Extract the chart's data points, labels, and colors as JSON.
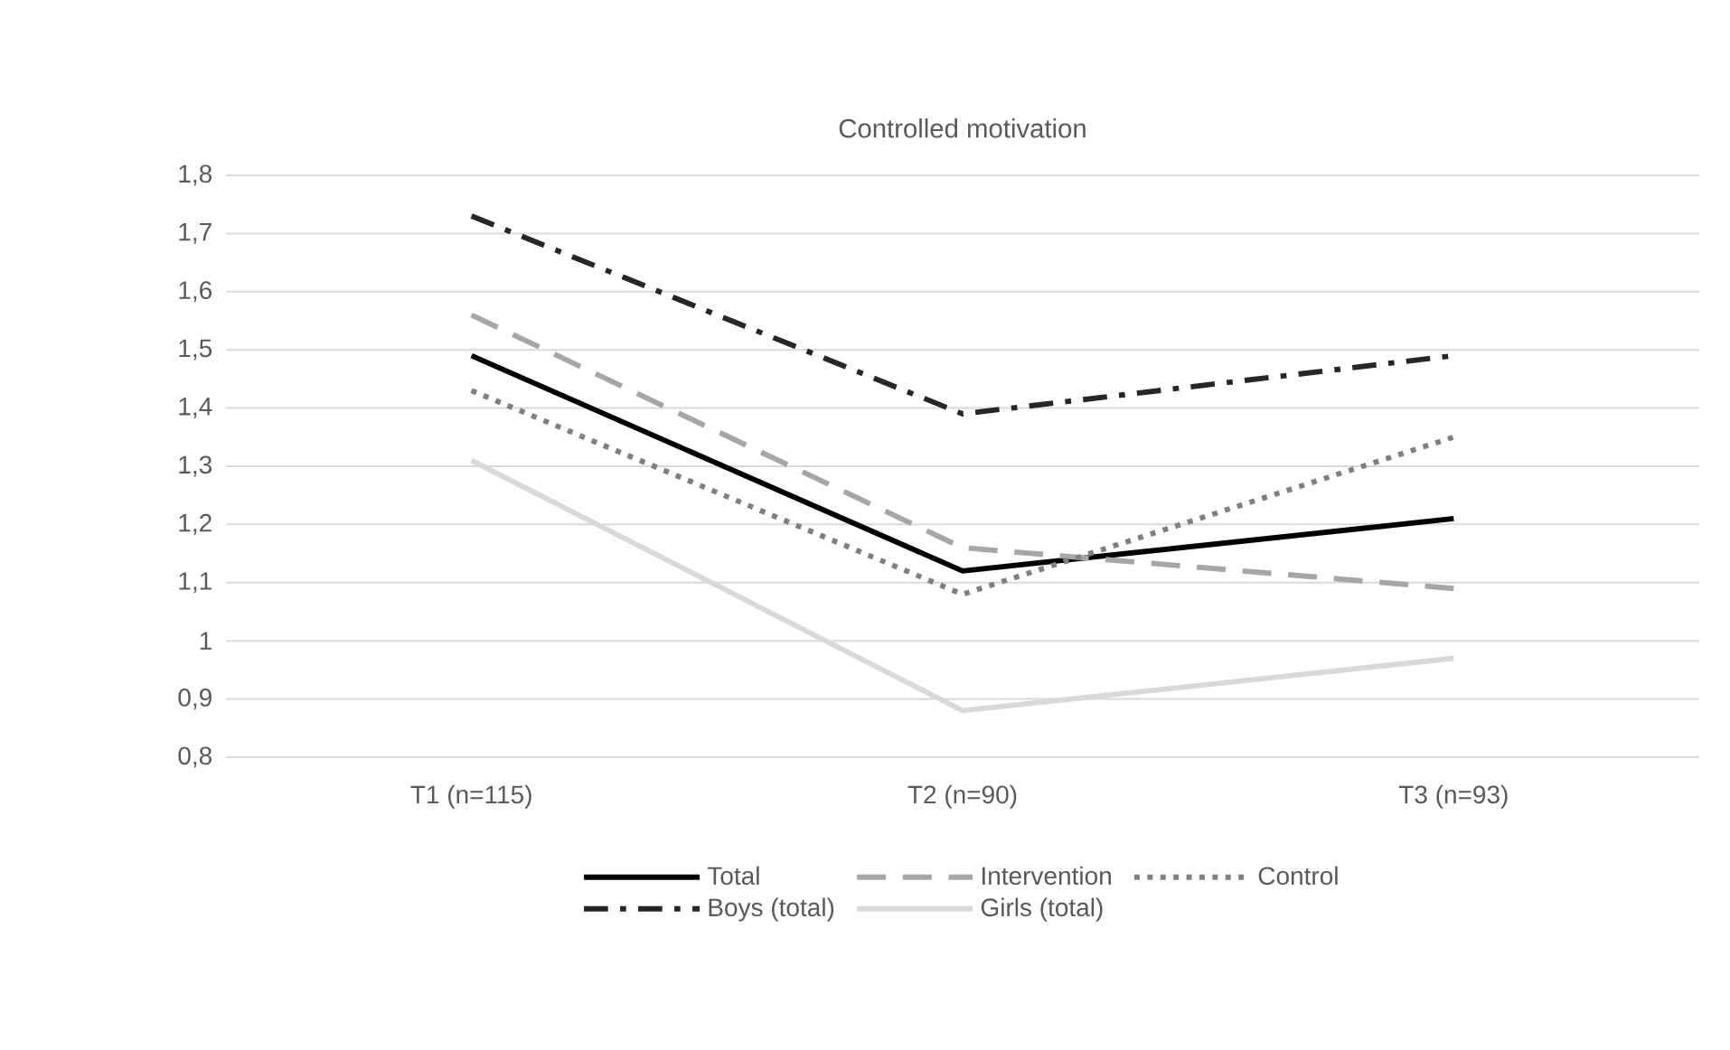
{
  "chart_data": {
    "type": "line",
    "title": "Controlled motivation",
    "categories": [
      "T1 (n=115)",
      "T2 (n=90)",
      "T3 (n=93)"
    ],
    "series": [
      {
        "name": "Total",
        "color": "#000000",
        "line_style": "solid",
        "values": [
          1.49,
          1.12,
          1.21
        ]
      },
      {
        "name": "Intervention",
        "color": "#a6a6a6",
        "line_style": "dashed",
        "values": [
          1.56,
          1.16,
          1.09
        ]
      },
      {
        "name": "Control",
        "color": "#7f7f7f",
        "line_style": "dotted",
        "values": [
          1.43,
          1.08,
          1.35
        ]
      },
      {
        "name": "Boys (total)",
        "color": "#262626",
        "line_style": "dashdot",
        "values": [
          1.73,
          1.39,
          1.49
        ]
      },
      {
        "name": "Girls (total)",
        "color": "#d9d9d9",
        "line_style": "solid",
        "values": [
          1.31,
          0.88,
          0.97
        ]
      }
    ],
    "ylim": [
      0.8,
      1.8
    ],
    "yticks": [
      {
        "value": 0.8,
        "label": "0,8"
      },
      {
        "value": 0.9,
        "label": "0,9"
      },
      1,
      {
        "value": 1.1,
        "label": "1,1"
      },
      {
        "value": 1.2,
        "label": "1,2"
      },
      {
        "value": 1.3,
        "label": "1,3"
      },
      {
        "value": 1.4,
        "label": "1,4"
      },
      {
        "value": 1.5,
        "label": "1,5"
      },
      {
        "value": 1.6,
        "label": "1,6"
      },
      {
        "value": 1.7,
        "label": "1,7"
      },
      {
        "value": 1.8,
        "label": "1,8"
      }
    ],
    "grid": "y",
    "legend": "bottom",
    "marker": "none"
  }
}
